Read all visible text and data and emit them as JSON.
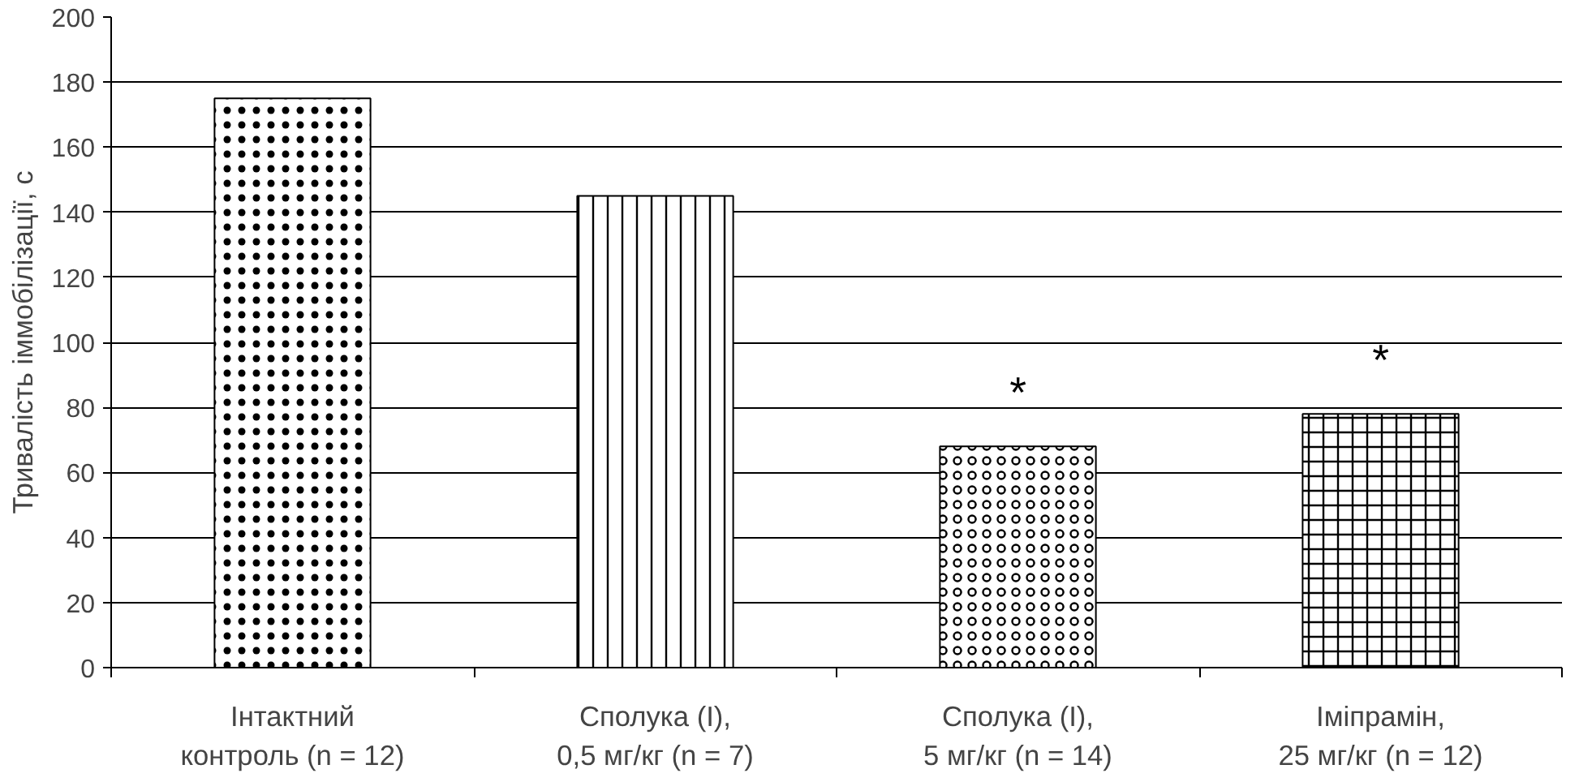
{
  "chart_data": {
    "type": "bar",
    "categories": [
      "Інтактний\nконтроль (n = 12)",
      "Сполука (I),\n0,5 мг/кг (n = 7)",
      "Сполука (I),\n5 мг/кг (n = 14)",
      "Іміпрамін,\n25 мг/кг (n = 12)"
    ],
    "values": [
      175,
      145,
      68,
      78
    ],
    "color": "#000000",
    "ylabel": "Тривалість іммобілізації, с",
    "ylim": [
      0,
      200
    ],
    "yticks": [
      0,
      20,
      40,
      60,
      80,
      100,
      120,
      140,
      160,
      180,
      200
    ],
    "grid": "y",
    "value_labels": [
      null,
      null,
      "*",
      "*"
    ]
  }
}
